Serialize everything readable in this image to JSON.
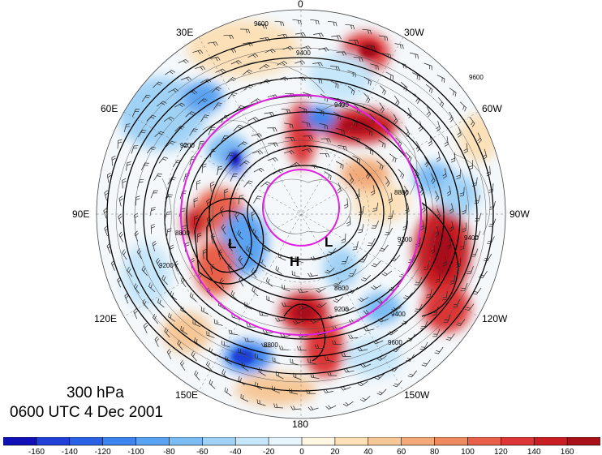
{
  "map": {
    "projection": "polar-stereographic-north",
    "field": "300 hPa geopotential height contours with wind barbs and shaded divergence anomaly",
    "longitude_labels": [
      {
        "text": "0",
        "lon": 0
      },
      {
        "text": "30W",
        "lon": -30
      },
      {
        "text": "60W",
        "lon": -60
      },
      {
        "text": "90W",
        "lon": -90
      },
      {
        "text": "120W",
        "lon": -120
      },
      {
        "text": "150W",
        "lon": -150
      },
      {
        "text": "180",
        "lon": 180
      },
      {
        "text": "150E",
        "lon": 150
      },
      {
        "text": "120E",
        "lon": 120
      },
      {
        "text": "90E",
        "lon": 90
      },
      {
        "text": "60E",
        "lon": 60
      },
      {
        "text": "30E",
        "lon": 30
      }
    ],
    "pressure_centers": [
      {
        "type": "L",
        "label": "L"
      },
      {
        "type": "H",
        "label": "H"
      },
      {
        "type": "L",
        "label": "L"
      }
    ],
    "contour_labels": [
      "9600",
      "9400",
      "9400",
      "9200",
      "9600",
      "9200",
      "8800",
      "8800",
      "8600",
      "9200",
      "9400",
      "9600",
      "8800",
      "9200",
      "9400"
    ],
    "line_color": "#000000",
    "circle_color": "#e020e0"
  },
  "caption": {
    "level": "300 hPa",
    "time": "0600 UTC 4 Dec 2001"
  },
  "colorbar": {
    "ticks": [
      "-160",
      "-140",
      "-120",
      "-100",
      "-80",
      "-60",
      "-40",
      "-20",
      "0",
      "20",
      "40",
      "60",
      "80",
      "100",
      "120",
      "140",
      "160"
    ],
    "colors": [
      "#1010b8",
      "#1f3fd8",
      "#2a62e6",
      "#3d84ee",
      "#5aa2f2",
      "#7cbcf4",
      "#a0d2f6",
      "#c6e6fa",
      "#e6f4fc",
      "#fdf6e0",
      "#fbe0b8",
      "#f6c898",
      "#f3aa78",
      "#ee8a5e",
      "#e8604a",
      "#dc3636",
      "#c81e24",
      "#a8101a"
    ]
  }
}
